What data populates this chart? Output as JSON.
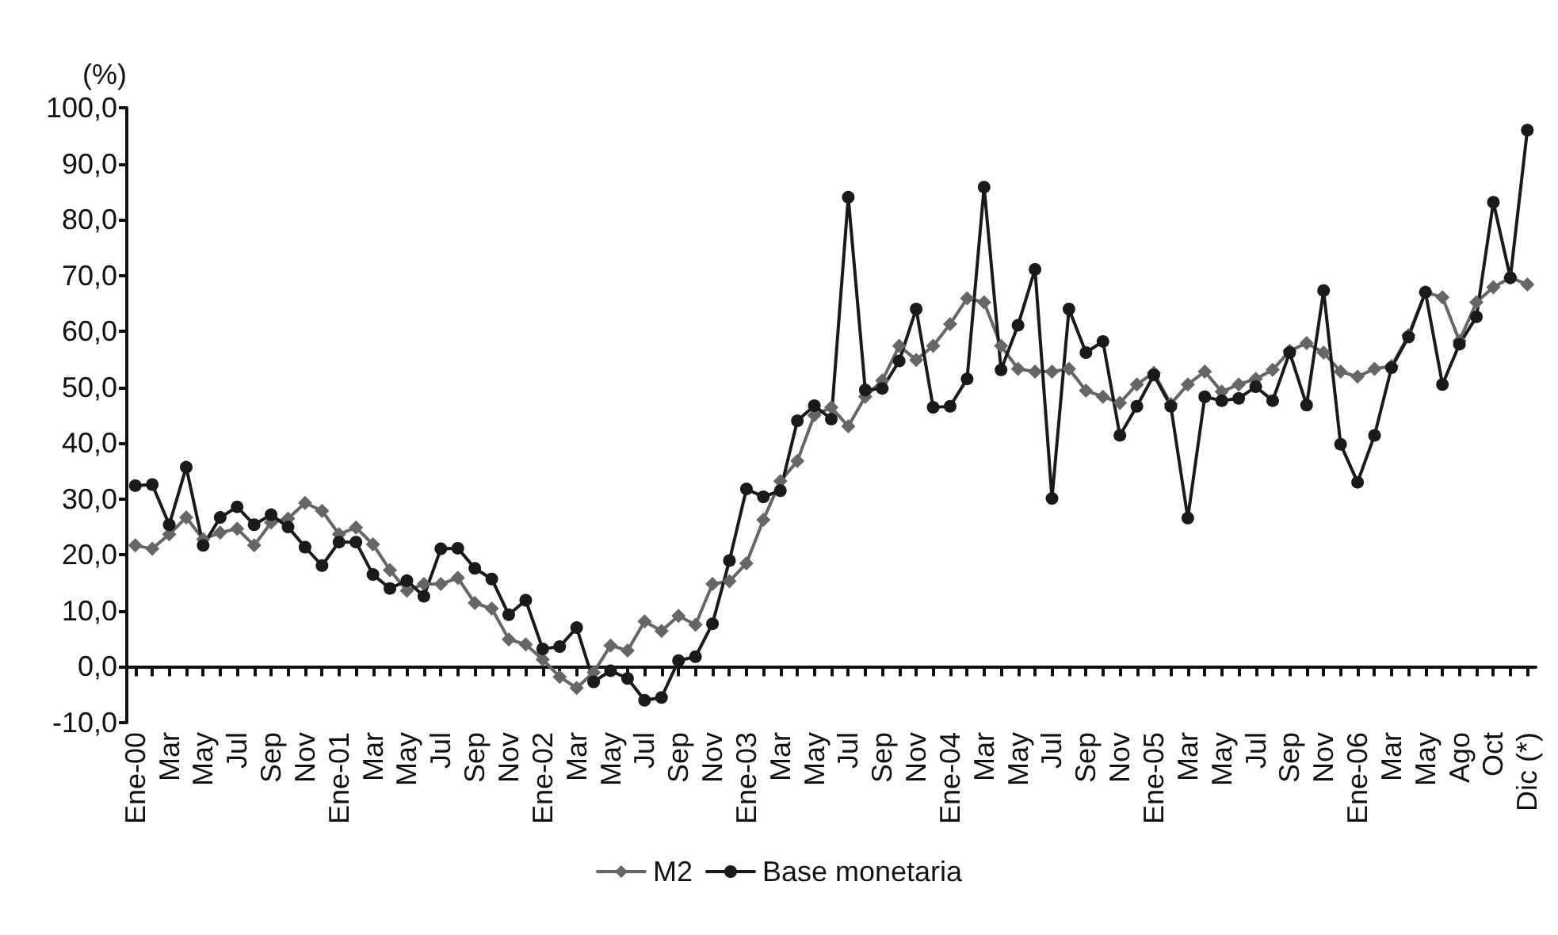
{
  "chart_data": {
    "type": "line",
    "ylabel": "(%)",
    "categories": [
      "Ene-00",
      null,
      "Mar",
      null,
      "May",
      null,
      "Jul",
      null,
      "Sep",
      null,
      "Nov",
      null,
      "Ene-01",
      null,
      "Mar",
      null,
      "May",
      null,
      "Jul",
      null,
      "Sep",
      null,
      "Nov",
      null,
      "Ene-02",
      null,
      "Mar",
      null,
      "May",
      null,
      "Jul",
      null,
      "Sep",
      null,
      "Nov",
      null,
      "Ene-03",
      null,
      "Mar",
      null,
      "May",
      null,
      "Jul",
      null,
      "Sep",
      null,
      "Nov",
      null,
      "Ene-04",
      null,
      "Mar",
      null,
      "May",
      null,
      "Jul",
      null,
      "Sep",
      null,
      "Nov",
      null,
      "Ene-05",
      null,
      "Mar",
      null,
      "May",
      null,
      "Jul",
      null,
      "Sep",
      null,
      "Nov",
      null,
      "Ene-06",
      null,
      "Mar",
      null,
      "May",
      null,
      "Ago",
      null,
      "Oct",
      null,
      "Dic (*)"
    ],
    "series": [
      {
        "name": "M2",
        "color": "#666666",
        "marker": "diamond",
        "values": [
          21.7,
          21.1,
          23.7,
          26.7,
          22.8,
          24.0,
          24.7,
          21.7,
          25.8,
          26.5,
          29.3,
          27.9,
          23.7,
          24.9,
          21.9,
          17.3,
          13.6,
          14.8,
          14.8,
          15.9,
          11.4,
          10.4,
          4.9,
          4.0,
          1.3,
          -1.8,
          -3.8,
          -1.0,
          3.8,
          2.9,
          8.1,
          6.4,
          9.1,
          7.5,
          14.8,
          15.3,
          18.5,
          26.3,
          33.2,
          36.8,
          45.0,
          46.4,
          43.0,
          48.3,
          51.2,
          57.4,
          54.9,
          57.4,
          61.3,
          65.9,
          65.2,
          57.4,
          53.3,
          52.8,
          52.8,
          53.3,
          49.4,
          48.3,
          47.2,
          50.5,
          52.6,
          47.0,
          50.5,
          52.8,
          49.2,
          50.5,
          51.5,
          53.1,
          56.5,
          57.9,
          56.2,
          52.8,
          51.9,
          53.3,
          53.8,
          59.3,
          67.0,
          66.1,
          58.3,
          65.2,
          67.9,
          69.6,
          68.4
        ]
      },
      {
        "name": "Base monetaria",
        "color": "#1a1a1a",
        "marker": "circle",
        "values": [
          32.4,
          32.6,
          25.4,
          35.7,
          21.7,
          26.7,
          28.6,
          25.4,
          27.2,
          25.0,
          21.4,
          18.1,
          22.3,
          22.3,
          16.5,
          14.0,
          15.4,
          12.6,
          21.1,
          21.2,
          17.6,
          15.7,
          9.3,
          11.9,
          3.2,
          3.6,
          7.0,
          -2.7,
          -0.7,
          -2.1,
          -6.0,
          -5.5,
          1.1,
          1.8,
          7.7,
          19.0,
          31.8,
          30.4,
          31.5,
          44.0,
          46.7,
          44.3,
          84.0,
          49.5,
          49.8,
          54.7,
          64.0,
          46.4,
          46.6,
          51.5,
          85.8,
          53.1,
          61.1,
          71.1,
          30.1,
          64.0,
          56.2,
          58.2,
          41.4,
          46.6,
          52.2,
          46.6,
          26.6,
          48.3,
          47.6,
          48.0,
          50.1,
          47.6,
          56.2,
          46.8,
          67.3,
          39.8,
          33.0,
          41.4,
          53.5,
          59.0,
          67.0,
          50.5,
          57.7,
          62.6,
          83.1,
          69.6,
          96.0
        ]
      }
    ],
    "ylim": [
      -10,
      100
    ],
    "yticks": [
      {
        "value": -10,
        "label": "-10,0"
      },
      {
        "value": 0,
        "label": "0,0"
      },
      {
        "value": 10,
        "label": "10,0"
      },
      {
        "value": 20,
        "label": "20,0"
      },
      {
        "value": 30,
        "label": "30,0"
      },
      {
        "value": 40,
        "label": "40,0"
      },
      {
        "value": 50,
        "label": "50,0"
      },
      {
        "value": 60,
        "label": "60,0"
      },
      {
        "value": 70,
        "label": "70,0"
      },
      {
        "value": 80,
        "label": "80,0"
      },
      {
        "value": 90,
        "label": "90,0"
      },
      {
        "value": 100,
        "label": "100,0"
      }
    ],
    "grid": false,
    "legend": "bottom",
    "line_style": "solid"
  }
}
